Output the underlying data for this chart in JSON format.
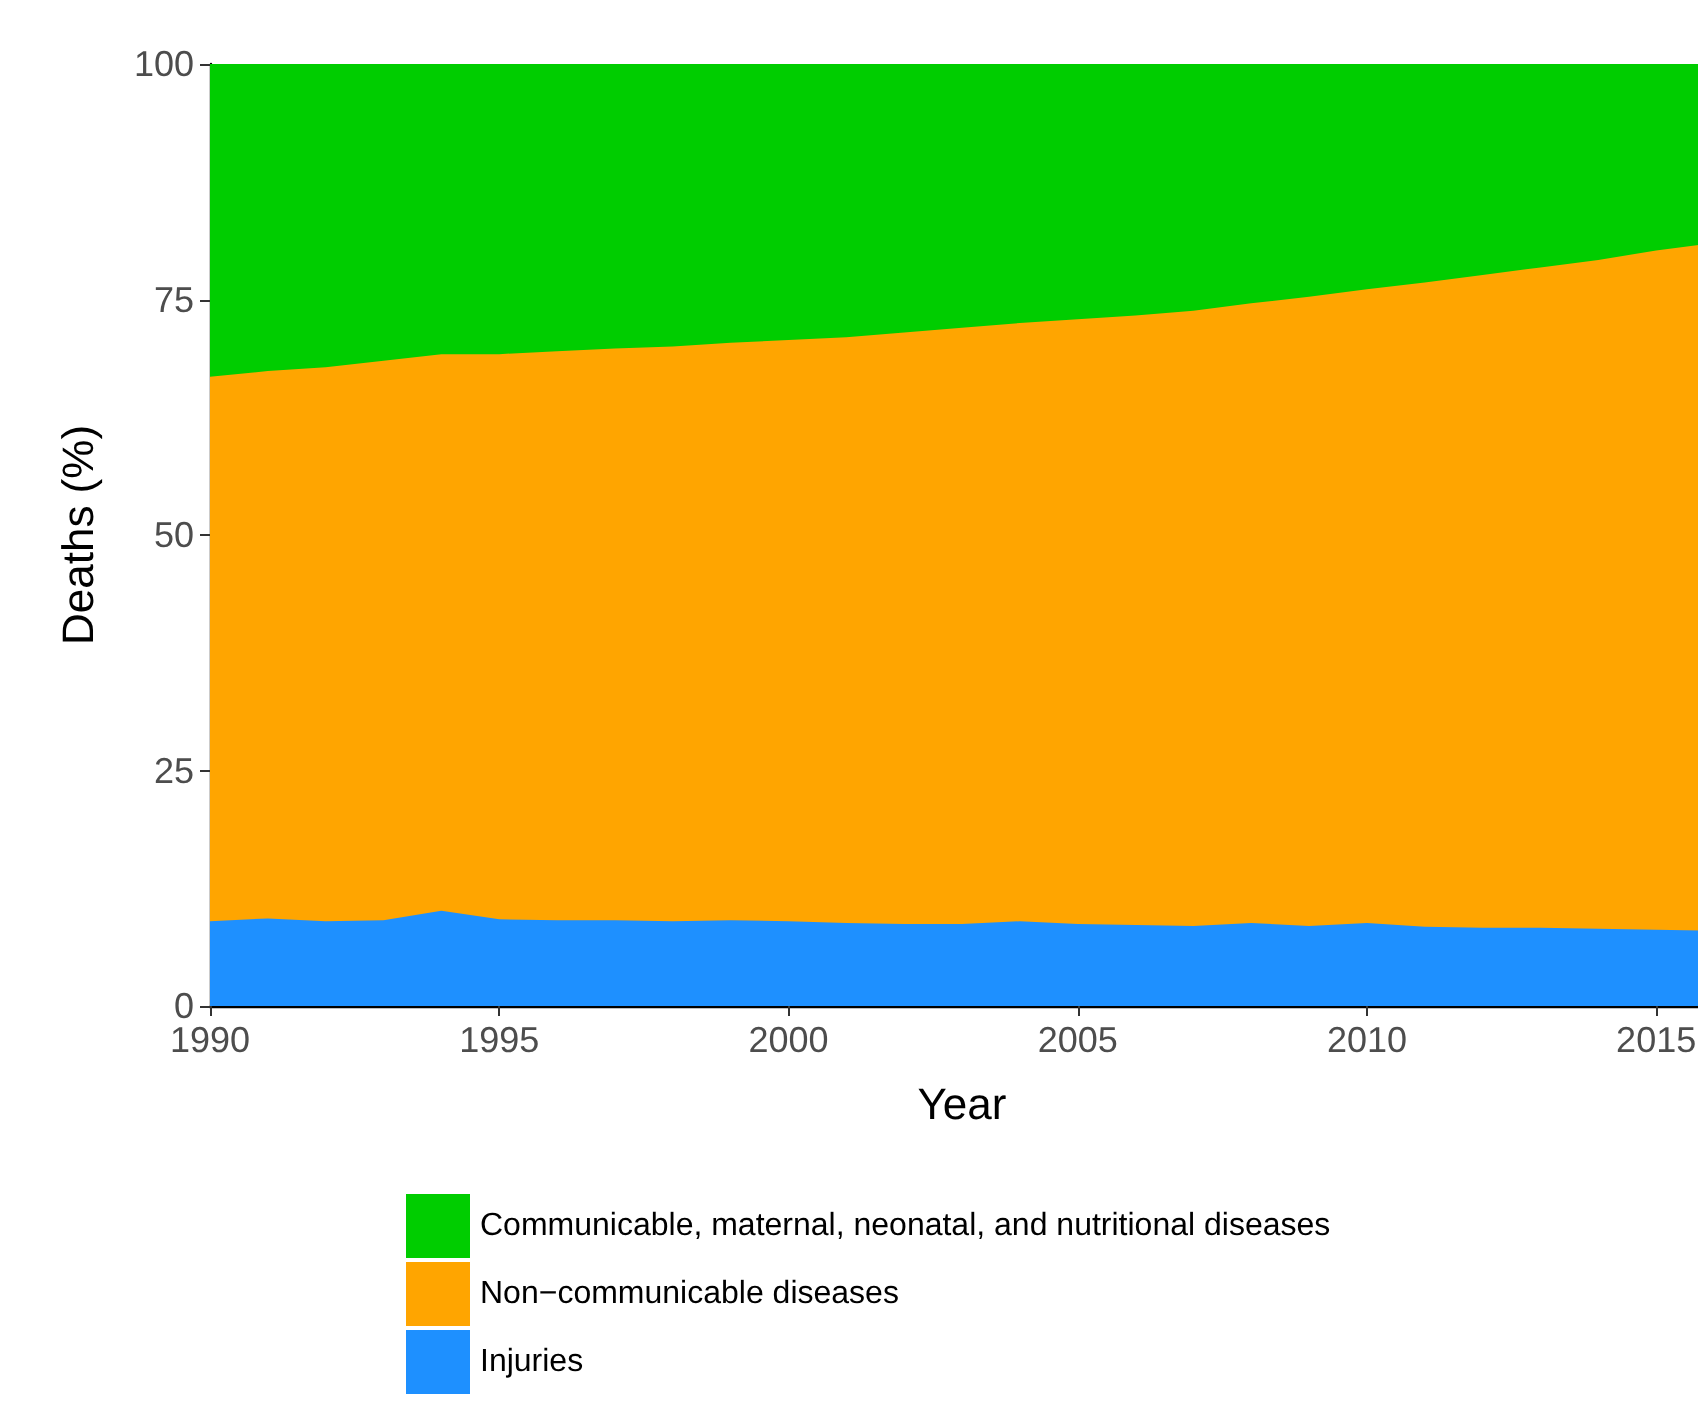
{
  "chart_data": {
    "type": "area",
    "stacked": true,
    "xlabel": "Year",
    "ylabel": "Deaths (%)",
    "x": [
      1990,
      1991,
      1992,
      1993,
      1994,
      1995,
      1996,
      1997,
      1998,
      1999,
      2000,
      2001,
      2002,
      2003,
      2004,
      2005,
      2006,
      2007,
      2008,
      2009,
      2010,
      2011,
      2012,
      2013,
      2014,
      2015,
      2016
    ],
    "series": [
      {
        "name": "Injuries",
        "color": "#1e90ff",
        "values": [
          9.0,
          9.3,
          9.0,
          9.1,
          10.1,
          9.2,
          9.1,
          9.1,
          9.0,
          9.1,
          9.0,
          8.8,
          8.7,
          8.7,
          9.0,
          8.7,
          8.6,
          8.5,
          8.8,
          8.5,
          8.8,
          8.4,
          8.3,
          8.3,
          8.2,
          8.1,
          8.0
        ]
      },
      {
        "name": "Non−communicable diseases",
        "color": "#ffa500",
        "values": [
          57.8,
          58.1,
          58.8,
          59.4,
          59.1,
          60.0,
          60.4,
          60.7,
          61.0,
          61.3,
          61.7,
          62.2,
          62.8,
          63.3,
          63.5,
          64.2,
          64.7,
          65.3,
          65.8,
          66.8,
          67.3,
          68.4,
          69.3,
          70.1,
          71.0,
          72.1,
          73.0
        ]
      },
      {
        "name": "Communicable, maternal, neonatal, and nutritional diseases",
        "color": "#00cd00",
        "values": [
          33.2,
          32.6,
          32.2,
          31.5,
          30.8,
          30.8,
          30.5,
          30.2,
          30.0,
          29.6,
          29.3,
          29.0,
          28.5,
          28.0,
          27.5,
          27.1,
          26.7,
          26.2,
          25.4,
          24.7,
          23.9,
          23.2,
          22.4,
          21.6,
          20.8,
          19.8,
          19.0
        ]
      }
    ],
    "xlim": [
      1990,
      2016
    ],
    "xticks": [
      1990,
      1995,
      2000,
      2005,
      2010,
      2015
    ],
    "ylim": [
      0,
      100
    ],
    "yticks": [
      0,
      25,
      50,
      75,
      100
    ],
    "legend": "bottom"
  }
}
